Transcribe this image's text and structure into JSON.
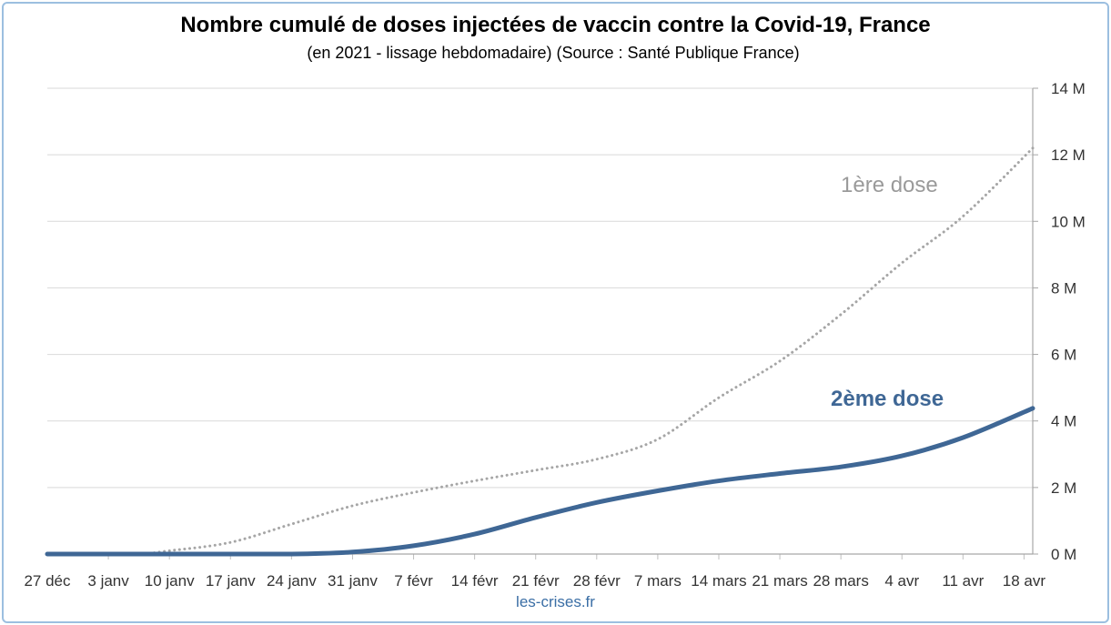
{
  "chart_data": {
    "type": "line",
    "title": "Nombre cumulé de doses injectées de vaccin contre la Covid-19, France",
    "subtitle": "(en 2021 - lissage hebdomadaire) (Source : Santé Publique France)",
    "x_unit": "days since 27 déc",
    "x_ticks": [
      {
        "label": "27 déc",
        "x": 0
      },
      {
        "label": "3 janv",
        "x": 7
      },
      {
        "label": "10 janv",
        "x": 14
      },
      {
        "label": "17 janv",
        "x": 21
      },
      {
        "label": "24 janv",
        "x": 28
      },
      {
        "label": "31 janv",
        "x": 35
      },
      {
        "label": "7 févr",
        "x": 42
      },
      {
        "label": "14 févr",
        "x": 49
      },
      {
        "label": "21 févr",
        "x": 56
      },
      {
        "label": "28 févr",
        "x": 63
      },
      {
        "label": "7 mars",
        "x": 70
      },
      {
        "label": "14 mars",
        "x": 77
      },
      {
        "label": "21 mars",
        "x": 84
      },
      {
        "label": "28 mars",
        "x": 91
      },
      {
        "label": "4 avr",
        "x": 98
      },
      {
        "label": "11 avr",
        "x": 105
      },
      {
        "label": "18 avr",
        "x": 112
      }
    ],
    "xlim": [
      0,
      113
    ],
    "ylim": [
      0,
      14000000
    ],
    "y_ticks": [
      {
        "label": "0 M",
        "value": 0
      },
      {
        "label": "2 M",
        "value": 2000000
      },
      {
        "label": "4 M",
        "value": 4000000
      },
      {
        "label": "6 M",
        "value": 6000000
      },
      {
        "label": "8 M",
        "value": 8000000
      },
      {
        "label": "10 M",
        "value": 10000000
      },
      {
        "label": "12 M",
        "value": 12000000
      },
      {
        "label": "14 M",
        "value": 14000000
      }
    ],
    "y_axis_side": "right",
    "grid": true,
    "series": [
      {
        "name": "1ère dose",
        "color": "#a6a6a6",
        "style": "dotted",
        "x": [
          0,
          10,
          14,
          21,
          28,
          35,
          42,
          49,
          56,
          63,
          70,
          77,
          84,
          91,
          98,
          105,
          113
        ],
        "values": [
          0,
          0,
          100000,
          350000,
          900000,
          1450000,
          1850000,
          2200000,
          2520000,
          2850000,
          3450000,
          4700000,
          5800000,
          7200000,
          8750000,
          10150000,
          12200000
        ]
      },
      {
        "name": "2ème dose",
        "color": "#3f6795",
        "style": "solid",
        "x": [
          0,
          14,
          28,
          35,
          42,
          49,
          56,
          63,
          70,
          77,
          84,
          91,
          98,
          105,
          113
        ],
        "values": [
          0,
          0,
          0,
          60000,
          250000,
          600000,
          1100000,
          1550000,
          1900000,
          2200000,
          2420000,
          2620000,
          2950000,
          3500000,
          4380000
        ]
      }
    ]
  },
  "watermark": "les-crises.fr"
}
